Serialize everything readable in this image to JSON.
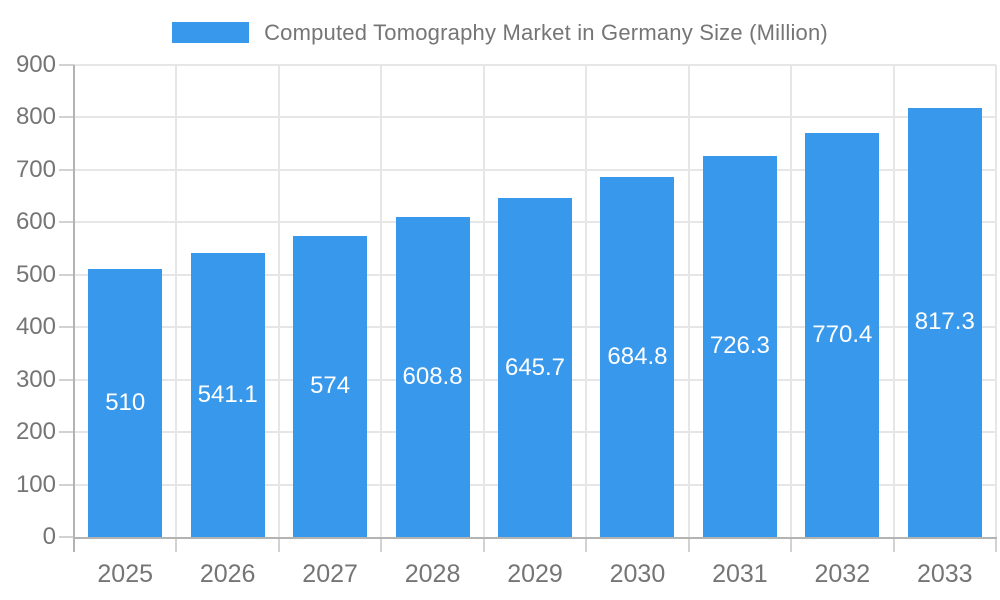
{
  "legend": {
    "label": "Computed Tomography Market in Germany Size (Million)"
  },
  "colors": {
    "bar": "#3898EC",
    "grid": "#e6e6e6",
    "axis": "#b3b3b3",
    "tick": "#d2d2d2",
    "text": "#757575",
    "value_label": "#ffffff",
    "background": "#ffffff"
  },
  "chart_data": {
    "type": "bar",
    "title": "Computed Tomography Market in Germany Size (Million)",
    "categories": [
      "2025",
      "2026",
      "2027",
      "2028",
      "2029",
      "2030",
      "2031",
      "2032",
      "2033"
    ],
    "values": [
      510,
      541.1,
      574,
      608.8,
      645.7,
      684.8,
      726.3,
      770.4,
      817.3
    ],
    "value_labels": [
      "510",
      "541.1",
      "574",
      "608.8",
      "645.7",
      "684.8",
      "726.3",
      "770.4",
      "817.3"
    ],
    "xlabel": "",
    "ylabel": "",
    "ylim": [
      0,
      900
    ],
    "yticks": [
      0,
      100,
      200,
      300,
      400,
      500,
      600,
      700,
      800,
      900
    ],
    "grid": true,
    "legend_position": "top",
    "series_color": "#3898EC",
    "value_label_position": "inside-middle"
  }
}
